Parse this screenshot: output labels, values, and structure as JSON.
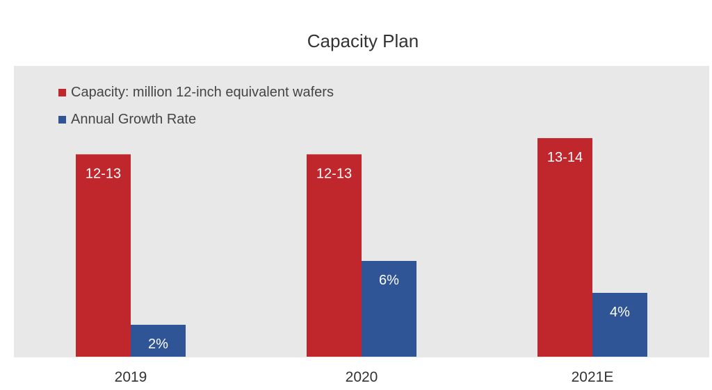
{
  "chart_data": {
    "type": "bar",
    "title": "Capacity Plan",
    "categories": [
      "2019",
      "2020",
      "2021E"
    ],
    "series": [
      {
        "name": "Capacity: million 12-inch equivalent wafers",
        "color": "#c0272d",
        "values": [
          12.5,
          12.5,
          13.5
        ],
        "labels": [
          "12-13",
          "12-13",
          "13-14"
        ]
      },
      {
        "name": "Annual Growth Rate",
        "color": "#2f5597",
        "values": [
          2,
          6,
          4
        ],
        "labels": [
          "2%",
          "6%",
          "4%"
        ]
      }
    ],
    "xlabel": "",
    "ylabel": "",
    "grid": false,
    "legend_position": "top-left"
  }
}
